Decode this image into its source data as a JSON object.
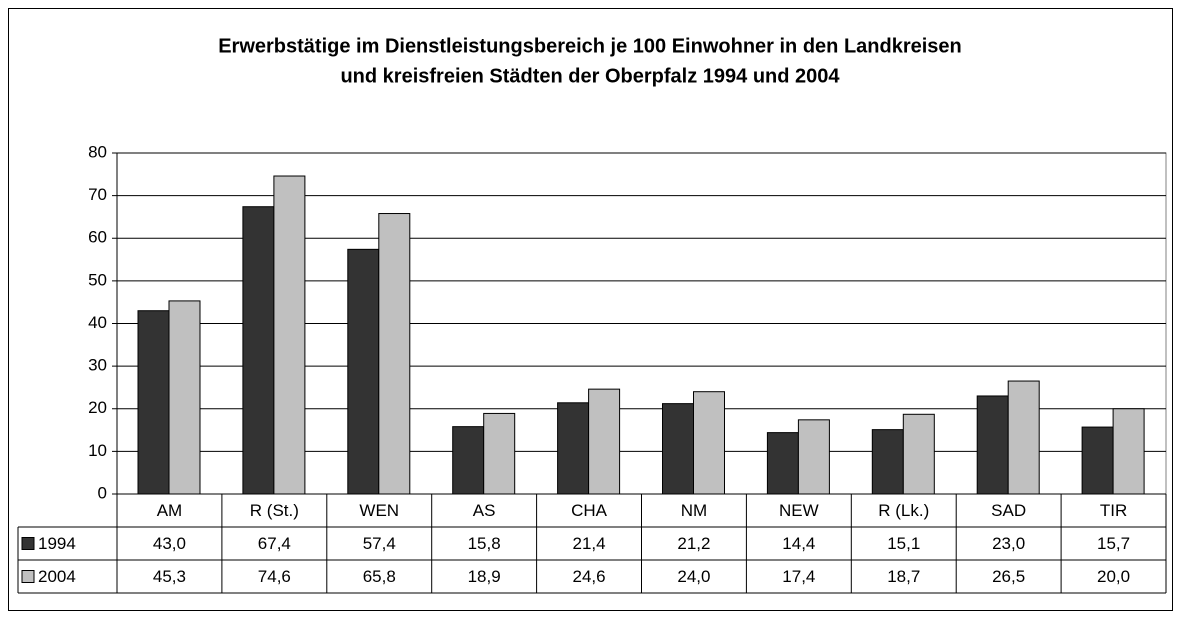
{
  "chart_data": {
    "type": "bar",
    "title": [
      "Erwerbstätige im Dienstleistungsbereich je 100 Einwohner in den Landkreisen",
      "und kreisfreien Städten der Oberpfalz 1994 und 2004"
    ],
    "categories": [
      "AM",
      "R (St.)",
      "WEN",
      "AS",
      "CHA",
      "NM",
      "NEW",
      "R (Lk.)",
      "SAD",
      "TIR"
    ],
    "series": [
      {
        "name": "1994",
        "color": "#333333",
        "values": [
          43.0,
          67.4,
          57.4,
          15.8,
          21.4,
          21.2,
          14.4,
          15.1,
          23.0,
          15.7
        ],
        "value_labels": [
          "43,0",
          "67,4",
          "57,4",
          "15,8",
          "21,4",
          "21,2",
          "14,4",
          "15,1",
          "23,0",
          "15,7"
        ]
      },
      {
        "name": "2004",
        "color": "#c0c0c0",
        "values": [
          45.3,
          74.6,
          65.8,
          18.9,
          24.6,
          24.0,
          17.4,
          18.7,
          26.5,
          20.0
        ],
        "value_labels": [
          "45,3",
          "74,6",
          "65,8",
          "18,9",
          "24,6",
          "24,0",
          "17,4",
          "18,7",
          "26,5",
          "20,0"
        ]
      }
    ],
    "ylim": [
      0,
      80
    ],
    "yticks": [
      0,
      10,
      20,
      30,
      40,
      50,
      60,
      70,
      80
    ],
    "grid": true,
    "legend": "table"
  }
}
